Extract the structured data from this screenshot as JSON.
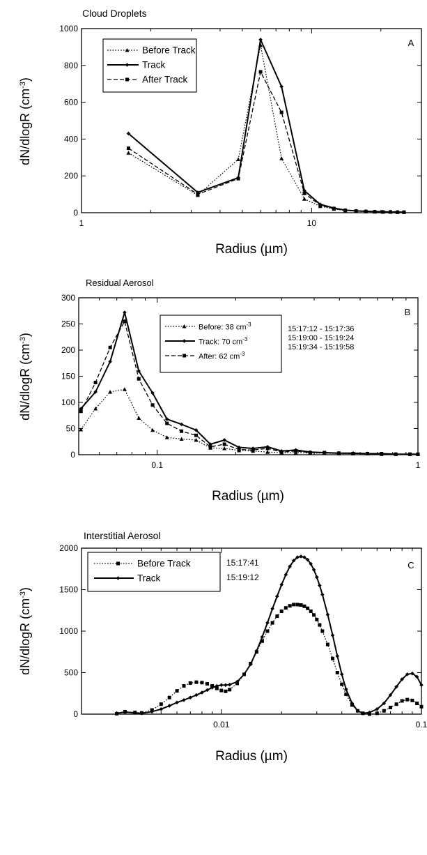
{
  "chart_data": [
    {
      "type": "line",
      "panel_title": "Cloud Droplets",
      "panel_letter": "A",
      "xlabel": "Radius (µm)",
      "ylabel": "dN/dlogR (cm-3)",
      "x_scale": "log",
      "xlim": [
        1,
        30
      ],
      "ylim": [
        0,
        1000
      ],
      "x_ticks": [
        1,
        10
      ],
      "x_tick_labels": [
        "1",
        "10"
      ],
      "y_ticks": [
        0,
        200,
        400,
        600,
        800,
        1000
      ],
      "y_tick_labels": [
        "0",
        "200",
        "400",
        "600",
        "800",
        "1000"
      ],
      "legend_position": "top-left",
      "annotations": [],
      "series": [
        {
          "name": "Before  Track",
          "style": "dotted",
          "marker": "triangle",
          "x": [
            1.6,
            3.2,
            4.8,
            6.0,
            7.4,
            9.3,
            10.9,
            12.5,
            14.0,
            15.6,
            17.2,
            18.8,
            20.4,
            22.0,
            23.6,
            25.2
          ],
          "y": [
            325,
            95,
            290,
            910,
            295,
            75,
            35,
            20,
            12,
            8,
            6,
            5,
            4,
            4,
            3,
            3
          ]
        },
        {
          "name": "Track",
          "style": "solid",
          "marker": "diamond",
          "x": [
            1.6,
            3.2,
            4.8,
            6.0,
            7.4,
            9.3,
            10.9,
            12.5,
            14.0,
            15.6,
            17.2,
            18.8,
            20.4,
            22.0,
            23.6,
            25.2
          ],
          "y": [
            430,
            110,
            190,
            940,
            685,
            120,
            45,
            25,
            14,
            10,
            8,
            6,
            5,
            4,
            4,
            3
          ]
        },
        {
          "name": "After  Track",
          "style": "dashed",
          "marker": "square",
          "x": [
            1.6,
            3.2,
            4.8,
            6.0,
            7.4,
            9.3,
            10.9,
            12.5,
            14.0,
            15.6,
            17.2,
            18.8,
            20.4,
            22.0,
            23.6,
            25.2
          ],
          "y": [
            350,
            100,
            185,
            765,
            545,
            105,
            40,
            22,
            13,
            9,
            7,
            5,
            4,
            4,
            3,
            3
          ]
        }
      ]
    },
    {
      "type": "line",
      "panel_title": "Residual Aerosol",
      "panel_letter": "B",
      "xlabel": "Radius (µm)",
      "ylabel": "dN/dlogR (cm-3)",
      "x_scale": "log",
      "xlim": [
        0.05,
        1
      ],
      "ylim": [
        0,
        300
      ],
      "x_ticks": [
        0.1,
        1
      ],
      "x_tick_labels": [
        "0.1",
        "1"
      ],
      "y_ticks": [
        0,
        50,
        100,
        150,
        200,
        250,
        300
      ],
      "y_tick_labels": [
        "0",
        "50",
        "100",
        "150",
        "200",
        "250",
        "300"
      ],
      "legend_position": "top-center",
      "annotations": [
        "15:17:12 - 15:17:36",
        "15:19:00 - 15:19:24",
        "15:19:34 - 15:19:58"
      ],
      "series": [
        {
          "name": "Before: 38 cm-3",
          "style": "dotted",
          "marker": "triangle",
          "x": [
            0.051,
            0.058,
            0.066,
            0.075,
            0.085,
            0.096,
            0.109,
            0.124,
            0.141,
            0.16,
            0.181,
            0.206,
            0.233,
            0.265,
            0.3,
            0.34,
            0.386,
            0.438,
            0.497,
            0.564,
            0.64,
            0.725,
            0.822,
            0.932,
            1.0
          ],
          "y": [
            48,
            88,
            120,
            125,
            70,
            47,
            33,
            30,
            28,
            13,
            12,
            8,
            7,
            5,
            4,
            4,
            3,
            3,
            2,
            2,
            2,
            1,
            1,
            1,
            1
          ]
        },
        {
          "name": "Track: 70 cm-3",
          "style": "solid",
          "marker": "diamond",
          "x": [
            0.051,
            0.058,
            0.066,
            0.075,
            0.085,
            0.096,
            0.109,
            0.124,
            0.141,
            0.16,
            0.181,
            0.206,
            0.233,
            0.265,
            0.3,
            0.34,
            0.386,
            0.438,
            0.497,
            0.564,
            0.64,
            0.725,
            0.822,
            0.932,
            1.0
          ],
          "y": [
            88,
            120,
            178,
            272,
            160,
            118,
            68,
            58,
            47,
            20,
            28,
            14,
            12,
            15,
            7,
            9,
            5,
            4,
            3,
            3,
            2,
            2,
            1,
            1,
            1
          ]
        },
        {
          "name": "After: 62 cm-3",
          "style": "dashed",
          "marker": "square",
          "x": [
            0.051,
            0.058,
            0.066,
            0.075,
            0.085,
            0.096,
            0.109,
            0.124,
            0.141,
            0.16,
            0.181,
            0.206,
            0.233,
            0.265,
            0.3,
            0.34,
            0.386,
            0.438,
            0.497,
            0.564,
            0.64,
            0.725,
            0.822,
            0.932,
            1.0
          ],
          "y": [
            83,
            138,
            205,
            255,
            145,
            95,
            60,
            45,
            37,
            15,
            20,
            10,
            9,
            12,
            5,
            7,
            4,
            4,
            3,
            2,
            2,
            2,
            1,
            1,
            1
          ]
        }
      ]
    },
    {
      "type": "line",
      "panel_title": "Interstitial   Aerosol",
      "panel_letter": "C",
      "xlabel": "Radius (µm)",
      "ylabel": "dN/dlogR (cm-3)",
      "x_scale": "log",
      "xlim": [
        0.002,
        0.1
      ],
      "ylim": [
        0,
        2000
      ],
      "x_ticks": [
        0.01,
        0.1
      ],
      "x_tick_labels": [
        "0.01",
        "0.1"
      ],
      "y_ticks": [
        0,
        500,
        1000,
        1500,
        2000
      ],
      "y_tick_labels": [
        "0",
        "500",
        "1000",
        "1500",
        "2000"
      ],
      "legend_position": "top-left",
      "annotations": [
        "15:17:41",
        "15:19:12"
      ],
      "series": [
        {
          "name": "Before  Track",
          "style": "dotted",
          "marker": "square",
          "x": [
            0.003,
            0.0033,
            0.0037,
            0.004,
            0.0045,
            0.005,
            0.0055,
            0.006,
            0.0065,
            0.007,
            0.0075,
            0.008,
            0.0085,
            0.009,
            0.0095,
            0.01,
            0.0105,
            0.011,
            0.012,
            0.013,
            0.014,
            0.015,
            0.016,
            0.017,
            0.018,
            0.019,
            0.02,
            0.021,
            0.022,
            0.023,
            0.024,
            0.025,
            0.026,
            0.027,
            0.028,
            0.029,
            0.03,
            0.031,
            0.032,
            0.034,
            0.036,
            0.038,
            0.04,
            0.042,
            0.045,
            0.048,
            0.051,
            0.055,
            0.06,
            0.065,
            0.07,
            0.075,
            0.08,
            0.085,
            0.09,
            0.095,
            0.1
          ],
          "y": [
            5,
            30,
            20,
            15,
            50,
            120,
            200,
            280,
            340,
            375,
            385,
            380,
            365,
            340,
            310,
            285,
            275,
            295,
            370,
            480,
            610,
            750,
            880,
            1000,
            1100,
            1180,
            1240,
            1280,
            1305,
            1320,
            1320,
            1315,
            1300,
            1275,
            1240,
            1195,
            1140,
            1075,
            1000,
            840,
            670,
            500,
            360,
            240,
            110,
            40,
            10,
            0,
            10,
            40,
            80,
            120,
            160,
            175,
            165,
            130,
            90
          ]
        },
        {
          "name": "Track",
          "style": "solid",
          "marker": "diamond",
          "x": [
            0.003,
            0.0033,
            0.0037,
            0.004,
            0.0045,
            0.005,
            0.0055,
            0.006,
            0.0065,
            0.007,
            0.0075,
            0.008,
            0.0085,
            0.009,
            0.0095,
            0.01,
            0.0105,
            0.011,
            0.012,
            0.013,
            0.014,
            0.015,
            0.016,
            0.017,
            0.018,
            0.019,
            0.02,
            0.021,
            0.022,
            0.023,
            0.024,
            0.025,
            0.026,
            0.027,
            0.028,
            0.029,
            0.03,
            0.031,
            0.032,
            0.034,
            0.036,
            0.038,
            0.04,
            0.042,
            0.045,
            0.048,
            0.051,
            0.055,
            0.06,
            0.065,
            0.07,
            0.075,
            0.08,
            0.085,
            0.09,
            0.095,
            0.1
          ],
          "y": [
            10,
            25,
            15,
            10,
            30,
            60,
            100,
            140,
            170,
            200,
            230,
            260,
            290,
            320,
            340,
            350,
            350,
            355,
            390,
            480,
            600,
            760,
            930,
            1100,
            1270,
            1420,
            1560,
            1680,
            1780,
            1850,
            1890,
            1900,
            1890,
            1860,
            1810,
            1740,
            1650,
            1550,
            1440,
            1200,
            950,
            700,
            480,
            300,
            130,
            40,
            10,
            20,
            60,
            130,
            230,
            330,
            420,
            480,
            490,
            450,
            350
          ]
        }
      ]
    }
  ]
}
